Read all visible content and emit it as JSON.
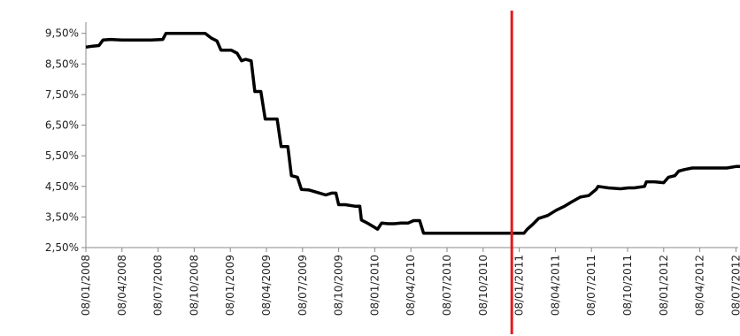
{
  "chart_data": {
    "type": "line",
    "title": "",
    "xlabel": "",
    "ylabel": "",
    "y_ticks": [
      "2,50%",
      "3,50%",
      "4,50%",
      "5,50%",
      "6,50%",
      "7,50%",
      "8,50%",
      "9,50%"
    ],
    "ylim": [
      2.5,
      10.3
    ],
    "x_ticks": [
      "08/01/2008",
      "08/04/2008",
      "08/07/2008",
      "08/10/2008",
      "08/01/2009",
      "08/04/2009",
      "08/07/2009",
      "08/10/2009",
      "08/01/2010",
      "08/04/2010",
      "08/07/2010",
      "08/10/2010",
      "08/01/2011",
      "08/04/2011",
      "08/07/2011",
      "08/10/2011",
      "08/01/2012",
      "08/04/2012",
      "08/07/2012"
    ],
    "grid": false,
    "series": [
      {
        "color": "#000000",
        "points": [
          [
            "2008-01-08",
            9.05
          ],
          [
            "2008-01-25",
            9.08
          ],
          [
            "2008-02-10",
            9.1
          ],
          [
            "2008-02-20",
            9.28
          ],
          [
            "2008-03-10",
            9.3
          ],
          [
            "2008-04-08",
            9.28
          ],
          [
            "2008-05-15",
            9.28
          ],
          [
            "2008-06-20",
            9.28
          ],
          [
            "2008-07-20",
            9.3
          ],
          [
            "2008-07-28",
            9.5
          ],
          [
            "2008-09-01",
            9.5
          ],
          [
            "2008-10-15",
            9.5
          ],
          [
            "2008-11-05",
            9.5
          ],
          [
            "2008-11-20",
            9.35
          ],
          [
            "2008-12-05",
            9.25
          ],
          [
            "2008-12-15",
            8.95
          ],
          [
            "2009-01-10",
            8.95
          ],
          [
            "2009-01-25",
            8.85
          ],
          [
            "2009-02-05",
            8.6
          ],
          [
            "2009-02-15",
            8.65
          ],
          [
            "2009-03-01",
            8.6
          ],
          [
            "2009-03-10",
            7.6
          ],
          [
            "2009-03-25",
            7.6
          ],
          [
            "2009-04-05",
            6.7
          ],
          [
            "2009-05-05",
            6.7
          ],
          [
            "2009-05-15",
            5.8
          ],
          [
            "2009-06-01",
            5.8
          ],
          [
            "2009-06-10",
            4.85
          ],
          [
            "2009-06-25",
            4.8
          ],
          [
            "2009-07-05",
            4.4
          ],
          [
            "2009-07-25",
            4.38
          ],
          [
            "2009-08-15",
            4.3
          ],
          [
            "2009-09-05",
            4.22
          ],
          [
            "2009-09-20",
            4.28
          ],
          [
            "2009-10-01",
            4.28
          ],
          [
            "2009-10-08",
            3.9
          ],
          [
            "2009-10-25",
            3.9
          ],
          [
            "2009-11-20",
            3.85
          ],
          [
            "2009-12-01",
            3.85
          ],
          [
            "2009-12-05",
            3.4
          ],
          [
            "2009-12-20",
            3.3
          ],
          [
            "2010-01-05",
            3.18
          ],
          [
            "2010-01-15",
            3.1
          ],
          [
            "2010-01-25",
            3.3
          ],
          [
            "2010-02-10",
            3.28
          ],
          [
            "2010-02-25",
            3.28
          ],
          [
            "2010-03-15",
            3.3
          ],
          [
            "2010-04-01",
            3.3
          ],
          [
            "2010-04-15",
            3.38
          ],
          [
            "2010-04-30",
            3.38
          ],
          [
            "2010-05-10",
            2.97
          ],
          [
            "2011-01-01",
            2.97
          ],
          [
            "2011-01-20",
            2.97
          ],
          [
            "2011-01-28",
            3.1
          ],
          [
            "2011-02-10",
            3.25
          ],
          [
            "2011-02-25",
            3.45
          ],
          [
            "2011-03-20",
            3.55
          ],
          [
            "2011-04-10",
            3.72
          ],
          [
            "2011-05-01",
            3.85
          ],
          [
            "2011-05-20",
            4.0
          ],
          [
            "2011-06-10",
            4.15
          ],
          [
            "2011-07-01",
            4.2
          ],
          [
            "2011-07-20",
            4.4
          ],
          [
            "2011-07-25",
            4.5
          ],
          [
            "2011-08-20",
            4.45
          ],
          [
            "2011-09-20",
            4.42
          ],
          [
            "2011-10-10",
            4.45
          ],
          [
            "2011-10-25",
            4.45
          ],
          [
            "2011-11-20",
            4.5
          ],
          [
            "2011-11-25",
            4.65
          ],
          [
            "2011-12-15",
            4.65
          ],
          [
            "2012-01-08",
            4.62
          ],
          [
            "2012-01-20",
            4.8
          ],
          [
            "2012-02-05",
            4.85
          ],
          [
            "2012-02-15",
            5.0
          ],
          [
            "2012-03-01",
            5.05
          ],
          [
            "2012-03-20",
            5.1
          ],
          [
            "2012-05-01",
            5.1
          ],
          [
            "2012-06-15",
            5.1
          ],
          [
            "2012-07-08",
            5.15
          ],
          [
            "2012-07-20",
            5.15
          ]
        ]
      }
    ],
    "vertical_marker": {
      "x": "2010-12-20",
      "color": "#e31a1c"
    }
  }
}
